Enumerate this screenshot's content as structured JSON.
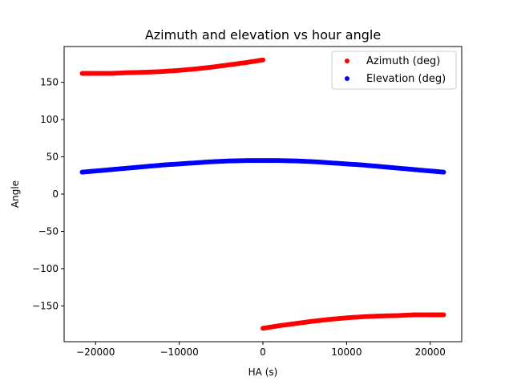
{
  "chart_data": {
    "type": "scatter",
    "title": "Azimuth and elevation vs hour angle",
    "xlabel": "HA (s)",
    "ylabel": "Angle",
    "xlim": [
      -23760,
      23760
    ],
    "ylim": [
      -198,
      198
    ],
    "xticks": [
      -20000,
      -10000,
      0,
      10000,
      20000
    ],
    "xtick_labels": [
      "−20000",
      "−10000",
      "0",
      "10000",
      "20000"
    ],
    "yticks": [
      -150,
      -100,
      -50,
      0,
      50,
      100,
      150
    ],
    "ytick_labels": [
      "−150",
      "−100",
      "−50",
      "0",
      "50",
      "100",
      "150"
    ],
    "legend_position": "upper right",
    "grid": false,
    "series": [
      {
        "name": "Azimuth (deg)",
        "color": "#ff0000",
        "x": [
          -21600,
          -20000,
          -18000,
          -16000,
          -14000,
          -12000,
          -10000,
          -8000,
          -6000,
          -4000,
          -2000,
          0,
          0,
          2000,
          4000,
          6000,
          8000,
          10000,
          12000,
          14000,
          16000,
          18000,
          20000,
          21600
        ],
        "y": [
          162.0,
          162.0,
          162.0,
          163.0,
          163.5,
          164.5,
          166.0,
          168.0,
          170.5,
          173.5,
          176.5,
          180.0,
          -180.0,
          -176.5,
          -173.5,
          -170.5,
          -168.0,
          -166.0,
          -164.5,
          -163.5,
          -163.0,
          -162.0,
          -162.0,
          -162.0
        ]
      },
      {
        "name": "Elevation (deg)",
        "color": "#0000ff",
        "x": [
          -21600,
          -20000,
          -18000,
          -16000,
          -14000,
          -12000,
          -10000,
          -8000,
          -6000,
          -4000,
          -2000,
          0,
          2000,
          4000,
          6000,
          8000,
          10000,
          12000,
          14000,
          16000,
          18000,
          20000,
          21600
        ],
        "y": [
          29.5,
          31.0,
          33.0,
          35.0,
          37.0,
          39.0,
          40.5,
          42.0,
          43.5,
          44.5,
          45.0,
          45.0,
          45.0,
          44.5,
          43.5,
          42.0,
          40.5,
          39.0,
          37.0,
          35.0,
          33.0,
          31.0,
          29.5
        ]
      }
    ]
  }
}
